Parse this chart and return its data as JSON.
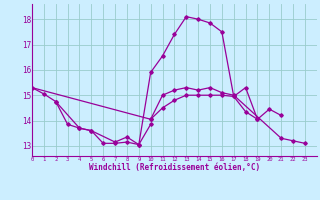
{
  "xlabel": "Windchill (Refroidissement éolien,°C)",
  "bg_color": "#cceeff",
  "line_color": "#990099",
  "grid_color": "#99cccc",
  "yticks": [
    13,
    14,
    15,
    16,
    17,
    18
  ],
  "xtick_labels": [
    "0",
    "1",
    "2",
    "3",
    "4",
    "5",
    "6",
    "7",
    "8",
    "9",
    "1011121314",
    "",
    "",
    "",
    "",
    "161718192021222 3",
    "",
    "",
    "",
    "",
    "",
    "",
    ""
  ],
  "xlim": [
    0,
    24
  ],
  "ylim": [
    12.6,
    18.6
  ],
  "curves": [
    [
      [
        0,
        15.3
      ],
      [
        1,
        15.05
      ],
      [
        2,
        14.75
      ],
      [
        3,
        13.85
      ],
      [
        4,
        13.7
      ],
      [
        5,
        13.6
      ],
      [
        6,
        13.1
      ],
      [
        7,
        13.1
      ],
      [
        8,
        13.15
      ],
      [
        9,
        13.05
      ],
      [
        10,
        15.9
      ],
      [
        11,
        16.55
      ],
      [
        12,
        17.4
      ],
      [
        13,
        18.1
      ],
      [
        14,
        18.0
      ],
      [
        15,
        17.85
      ],
      [
        16,
        17.5
      ],
      [
        17,
        14.95
      ],
      [
        18,
        15.3
      ],
      [
        19,
        14.05
      ],
      [
        20,
        14.45
      ],
      [
        21,
        14.2
      ]
    ],
    [
      [
        2,
        14.75
      ],
      [
        4,
        13.7
      ],
      [
        5,
        13.6
      ],
      [
        7,
        13.15
      ],
      [
        8,
        13.35
      ],
      [
        9,
        13.05
      ],
      [
        10,
        13.85
      ]
    ],
    [
      [
        0,
        15.3
      ],
      [
        10,
        14.05
      ],
      [
        11,
        15.0
      ],
      [
        12,
        15.2
      ],
      [
        13,
        15.3
      ],
      [
        14,
        15.2
      ],
      [
        15,
        15.3
      ],
      [
        16,
        15.1
      ],
      [
        17,
        15.0
      ],
      [
        21,
        13.3
      ],
      [
        22,
        13.2
      ],
      [
        23,
        13.1
      ]
    ],
    [
      [
        10,
        14.05
      ],
      [
        11,
        14.5
      ],
      [
        12,
        14.8
      ],
      [
        13,
        15.0
      ],
      [
        14,
        15.0
      ],
      [
        15,
        15.0
      ],
      [
        16,
        15.0
      ],
      [
        17,
        14.95
      ],
      [
        18,
        14.35
      ],
      [
        19,
        14.05
      ]
    ]
  ]
}
